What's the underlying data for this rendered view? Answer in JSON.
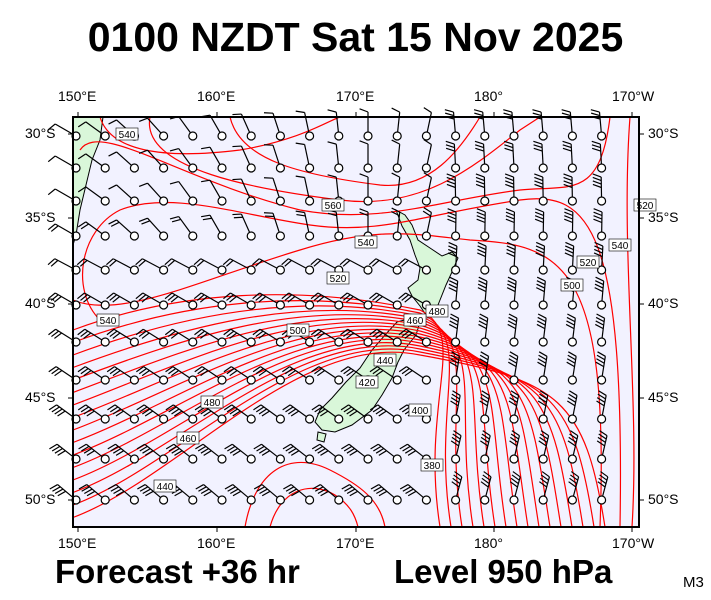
{
  "title": "0100 NZDT Sat 15 Nov 2025",
  "footer": {
    "forecast": "Forecast +36 hr",
    "level": "Level 950 hPa",
    "model": "M3"
  },
  "axes": {
    "lon_labels": [
      "150°E",
      "160°E",
      "170°E",
      "180°",
      "170°W"
    ],
    "lat_labels": [
      "30°S",
      "35°S",
      "40°S",
      "45°S",
      "50°S"
    ]
  },
  "contour_labels": [
    "540",
    "560",
    "540",
    "520",
    "540",
    "500",
    "480",
    "460",
    "440",
    "420",
    "480",
    "460",
    "440",
    "400",
    "380",
    "520",
    "540",
    "520",
    "500"
  ],
  "colors": {
    "ocean": "#f2f2ff",
    "land": "#d9f7d9",
    "contour": "#ff0000",
    "barb": "#000000"
  },
  "layers": {
    "contours": "geopotential height",
    "symbols": "wind barbs"
  }
}
